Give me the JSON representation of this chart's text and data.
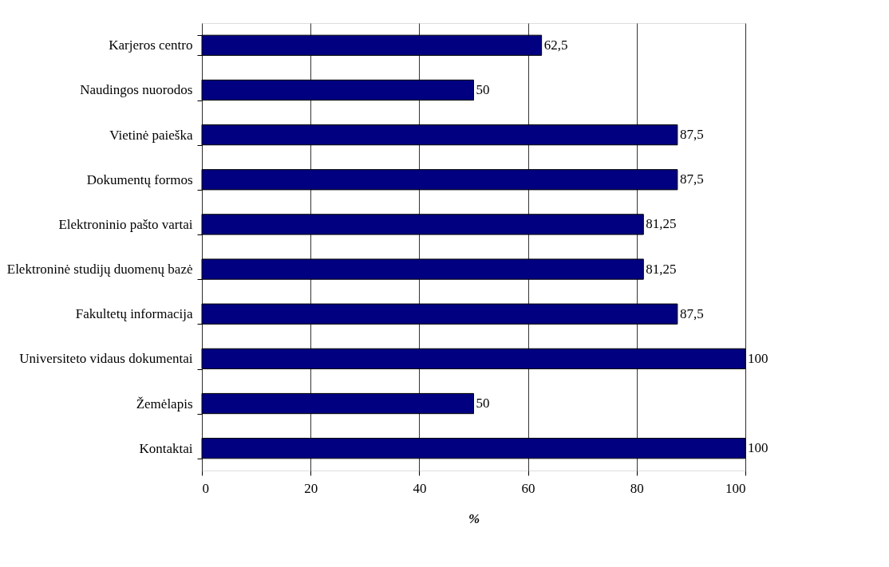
{
  "chart_data": {
    "type": "bar",
    "orientation": "horizontal",
    "categories": [
      "Karjeros centro",
      "Naudingos nuorodos",
      "Vietinė paieška",
      "Dokumentų formos",
      "Elektroninio pašto vartai",
      "Elektroninė studijų duomenų bazė",
      "Fakultetų informacija",
      "Universiteto vidaus dokumentai",
      "Žemėlapis",
      "Kontaktai"
    ],
    "values": [
      62.5,
      50,
      87.5,
      87.5,
      81.25,
      81.25,
      87.5,
      100,
      50,
      100
    ],
    "value_labels": [
      "62,5",
      "50",
      "87,5",
      "87,5",
      "81,25",
      "81,25",
      "87,5",
      "100",
      "50",
      "100"
    ],
    "color": "#000080",
    "xlim": [
      0,
      100
    ],
    "xticks": [
      0,
      20,
      40,
      60,
      80,
      100
    ],
    "xlabel": "%",
    "grid": "x"
  }
}
